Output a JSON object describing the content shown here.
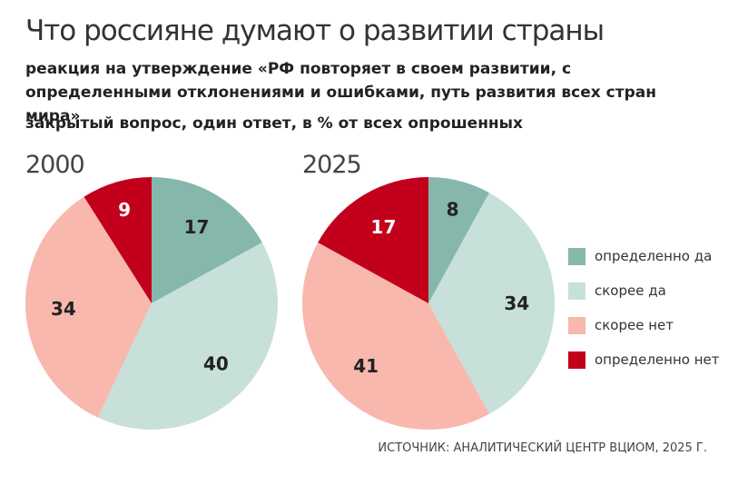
{
  "header": {
    "title": "Что россияне думают о развитии страны",
    "subtitle": "реакция на утверждение «РФ повторяет в своем развитии, с определенными отклонениями и ошибками, путь развития всех стран мира»",
    "note": "закрытый вопрос, один ответ, в % от всех опрошенных"
  },
  "chart_data": {
    "type": "pie",
    "categories": [
      "определенно да",
      "скорее да",
      "скорее нет",
      "определенно нет"
    ],
    "colors": [
      "#86b7ac",
      "#c7e0da",
      "#f8b8ad",
      "#c3001c"
    ],
    "label_colors": [
      "#222222",
      "#222222",
      "#222222",
      "#ffffff"
    ],
    "series": [
      {
        "name": "2000",
        "values": [
          17,
          40,
          34,
          9
        ]
      },
      {
        "name": "2025",
        "values": [
          8,
          34,
          41,
          17
        ]
      }
    ],
    "legend_position": "right"
  },
  "footer": {
    "source": "ИСТОЧНИК: АНАЛИТИЧЕСКИЙ ЦЕНТР ВЦИОМ, 2025 Г."
  }
}
